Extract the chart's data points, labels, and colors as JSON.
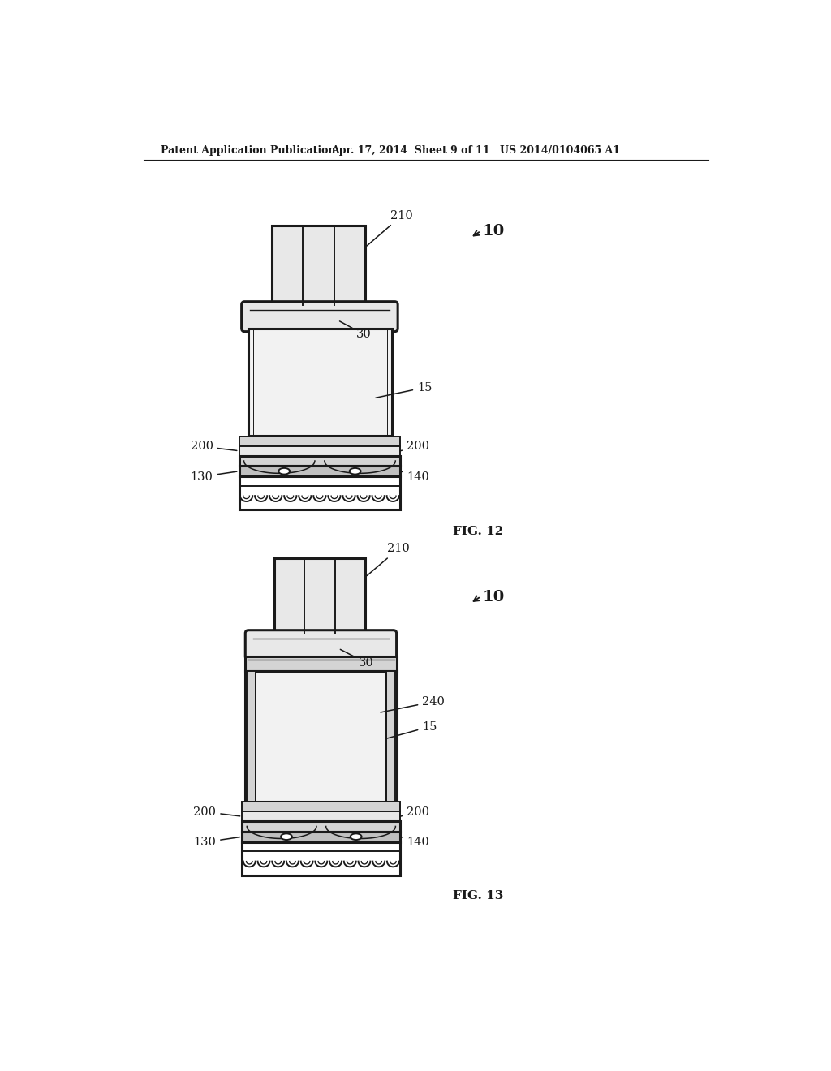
{
  "bg_color": "#ffffff",
  "line_color": "#1a1a1a",
  "header_left": "Patent Application Publication",
  "header_mid": "Apr. 17, 2014  Sheet 9 of 11",
  "header_right": "US 2014/0104065 A1",
  "fig12_label": "FIG. 12",
  "fig13_label": "FIG. 13",
  "lw": 1.4,
  "lw_thick": 2.2,
  "shade_light": "#e8e8e8",
  "shade_mid": "#d4d4d4",
  "shade_dark": "#c0c0c0",
  "body_fill": "#f2f2f2"
}
